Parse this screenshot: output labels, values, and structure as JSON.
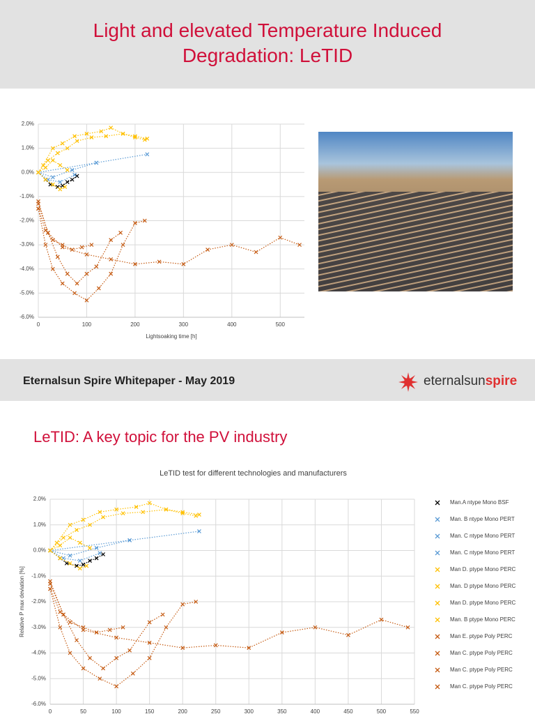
{
  "slide1": {
    "title": "Light and elevated Temperature Induced Degradation: LeTID",
    "chart": {
      "xlabel": "Lightsoaking time [h]",
      "xlim": [
        0,
        550
      ],
      "xticks": [
        0,
        100,
        200,
        300,
        400,
        500
      ],
      "ylim": [
        -6,
        2
      ],
      "yticks": [
        {
          "value": 2,
          "label": "2.0%"
        },
        {
          "value": 1,
          "label": "1.0%"
        },
        {
          "value": 0,
          "label": "0.0%"
        },
        {
          "value": -1,
          "label": "-1.0%"
        },
        {
          "value": -2,
          "label": "-2.0%"
        },
        {
          "value": -3,
          "label": "-3.0%"
        },
        {
          "value": -4,
          "label": "-4.0%"
        },
        {
          "value": -5,
          "label": "-5.0%"
        },
        {
          "value": -6,
          "label": "-6.0%"
        }
      ],
      "grid": true
    }
  },
  "footer": {
    "text": "Eternalsun Spire Whitepaper - May 2019",
    "logo_a": "eternalsun",
    "logo_b": "spire"
  },
  "slide2": {
    "title": "LeTID: A key topic for the PV industry",
    "chart": {
      "title": "LeTID test for different technologies and manufacturers",
      "ylabel": "Relative P max deviation [%]",
      "xlim": [
        0,
        550
      ],
      "xticks": [
        0,
        50,
        100,
        150,
        200,
        250,
        300,
        350,
        400,
        450,
        500,
        550
      ],
      "ylim": [
        -6,
        2
      ],
      "yticks": [
        {
          "value": 2,
          "label": "2.0%"
        },
        {
          "value": 1,
          "label": "1.0%"
        },
        {
          "value": 0,
          "label": "0.0%"
        },
        {
          "value": -1,
          "label": "-1.0%"
        },
        {
          "value": -2,
          "label": "-2.0%"
        },
        {
          "value": -3,
          "label": "-3.0%"
        },
        {
          "value": -4,
          "label": "-4.0%"
        },
        {
          "value": -5,
          "label": "-5.0%"
        },
        {
          "value": -6,
          "label": "-6.0%"
        }
      ],
      "grid": true
    }
  },
  "series": [
    {
      "name": "Man.A ntype Mono BSF",
      "color": "#000000",
      "x": [
        0,
        15,
        25,
        40,
        50,
        60,
        70,
        80
      ],
      "y": [
        0,
        -0.3,
        -0.5,
        -0.6,
        -0.55,
        -0.4,
        -0.3,
        -0.15
      ]
    },
    {
      "name": "Man. B ntype Mono PERT",
      "color": "#5b9bd5",
      "x": [
        0,
        120,
        225
      ],
      "y": [
        0,
        0.4,
        0.75
      ]
    },
    {
      "name": "Man. C ntype Mono PERT",
      "color": "#5b9bd5",
      "x": [
        0,
        30,
        70,
        120
      ],
      "y": [
        0,
        -0.2,
        0.1,
        0.4
      ]
    },
    {
      "name": "Man. C ntype Mono PERT",
      "color": "#5b9bd5",
      "x": [
        0,
        20,
        45,
        75
      ],
      "y": [
        0,
        -0.3,
        -0.4,
        -0.1
      ]
    },
    {
      "name": "Man D. ptype Mono PERC",
      "color": "#ffc000",
      "x": [
        0,
        10,
        30,
        50,
        75,
        100,
        130,
        150,
        175,
        200,
        225
      ],
      "y": [
        0,
        0.3,
        1.0,
        1.2,
        1.5,
        1.6,
        1.7,
        1.85,
        1.6,
        1.5,
        1.4
      ]
    },
    {
      "name": "Man. D ptype Mono PERC",
      "color": "#ffc000",
      "x": [
        0,
        15,
        30,
        45,
        60
      ],
      "y": [
        0,
        0.2,
        0.5,
        0.3,
        0.1
      ]
    },
    {
      "name": "Man D. ptype Mono PERC",
      "color": "#ffc000",
      "x": [
        0,
        15,
        30,
        45,
        55
      ],
      "y": [
        0,
        -0.3,
        -0.5,
        -0.7,
        -0.6
      ]
    },
    {
      "name": "Man. B ptype Mono PERC",
      "color": "#ffc000",
      "x": [
        0,
        20,
        40,
        60,
        80,
        110,
        140,
        175,
        200,
        220
      ],
      "y": [
        0,
        0.5,
        0.8,
        1.0,
        1.3,
        1.45,
        1.5,
        1.6,
        1.45,
        1.35
      ]
    },
    {
      "name": "Man E. ptype Poly PERC",
      "color": "#c55a11",
      "x": [
        0,
        20,
        50,
        100,
        150,
        200,
        250,
        300,
        350,
        400,
        450,
        500,
        540
      ],
      "y": [
        -1.3,
        -2.5,
        -3.1,
        -3.4,
        -3.6,
        -3.8,
        -3.7,
        -3.8,
        -3.2,
        -3.0,
        -3.3,
        -2.7,
        -3.0
      ]
    },
    {
      "name": "Man C. ptype Poly PERC",
      "color": "#c55a11",
      "x": [
        0,
        15,
        30,
        50,
        75,
        100,
        125,
        150,
        175,
        200,
        220
      ],
      "y": [
        -1.5,
        -3.0,
        -4.0,
        -4.6,
        -5.0,
        -5.3,
        -4.8,
        -4.2,
        -3.0,
        -2.1,
        -2.0
      ]
    },
    {
      "name": "Man C. ptype Poly PERC",
      "color": "#c55a11",
      "x": [
        0,
        20,
        40,
        60,
        80,
        100,
        120,
        150,
        170
      ],
      "y": [
        -1.2,
        -2.5,
        -3.5,
        -4.2,
        -4.6,
        -4.2,
        -3.9,
        -2.8,
        -2.5
      ]
    },
    {
      "name": "Man C. ptype Poly PERC",
      "color": "#c55a11",
      "x": [
        0,
        15,
        30,
        50,
        70,
        90,
        110
      ],
      "y": [
        -1.5,
        -2.4,
        -2.8,
        -3.0,
        -3.2,
        -3.1,
        -3.0
      ]
    }
  ]
}
